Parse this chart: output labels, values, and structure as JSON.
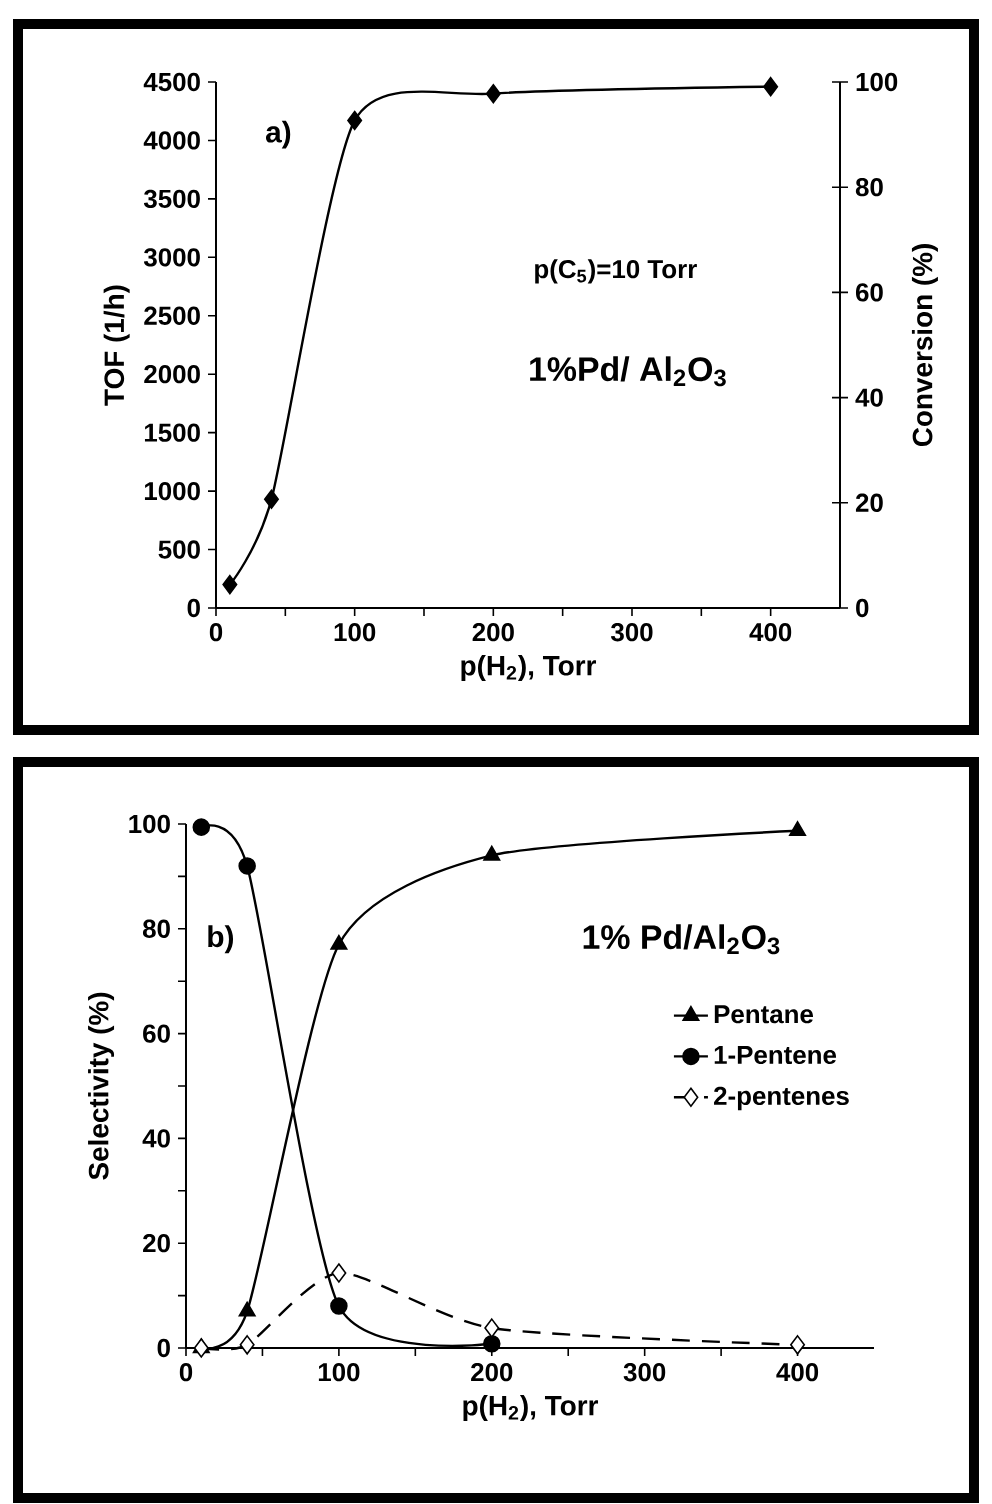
{
  "chart_data": [
    {
      "type": "line",
      "xlabel": "p(H$_{2}$), Torr",
      "ylabel": "TOF (1/h)",
      "y2label": "Conversion (%)",
      "annotations": [
        "a)",
        "p(C$_{5}$)=10 Torr",
        "1%Pd/ Al$_{2}$O$_{3}$"
      ],
      "x": [
        10,
        40,
        100,
        200,
        400
      ],
      "series": [
        {
          "color": "#000000",
          "marker": "diamond",
          "values": [
            200,
            930,
            4170,
            4400,
            4460
          ]
        }
      ],
      "xlim": [
        0,
        450
      ],
      "xticks": [
        0,
        {
          "value": 50,
          "label": null
        },
        100,
        {
          "value": 150,
          "label": null
        },
        200,
        {
          "value": 250,
          "label": null
        },
        300,
        {
          "value": 350,
          "label": null
        },
        400
      ],
      "ylim": [
        0,
        4500
      ],
      "yticks": [
        0,
        500,
        1000,
        1500,
        2000,
        2500,
        3000,
        3500,
        4000,
        4500
      ],
      "y2lim": [
        0,
        100
      ],
      "y2ticks": [
        0,
        20,
        40,
        60,
        80,
        100
      ],
      "grid": false,
      "legend": false
    },
    {
      "type": "line",
      "xlabel": "p(H$_{2}$), Torr",
      "ylabel": "Selectivity (%)",
      "annotations": [
        "b)",
        "1% Pd/Al$_{2}$O$_{3}$"
      ],
      "x": [
        10,
        40,
        100,
        200,
        400
      ],
      "series": [
        {
          "name": "Pentane",
          "color": "#000000",
          "marker": "triangle",
          "line_style": "solid",
          "values": [
            0,
            7,
            77,
            94,
            98.7
          ]
        },
        {
          "name": "1-Pentene",
          "color": "#000000",
          "marker": "circle",
          "line_style": "solid",
          "values": [
            99.4,
            92,
            8,
            0.8,
            null
          ]
        },
        {
          "name": "2-pentenes",
          "color": "#000000",
          "marker": "diamond",
          "line_style": "dashed",
          "values": [
            0,
            0.6,
            14.3,
            3.8,
            0.6
          ]
        }
      ],
      "xlim": [
        0,
        450
      ],
      "xticks": [
        0,
        {
          "value": 50,
          "label": null
        },
        100,
        {
          "value": 150,
          "label": null
        },
        200,
        {
          "value": 250,
          "label": null
        },
        300,
        {
          "value": 350,
          "label": null
        },
        400
      ],
      "ylim": [
        0,
        100
      ],
      "yticks": [
        0,
        {
          "value": 10,
          "label": null
        },
        20,
        {
          "value": 30,
          "label": null
        },
        40,
        {
          "value": 50,
          "label": null
        },
        60,
        {
          "value": 70,
          "label": null
        },
        80,
        {
          "value": 90,
          "label": null
        },
        100
      ],
      "grid": false,
      "legend": "right"
    }
  ]
}
